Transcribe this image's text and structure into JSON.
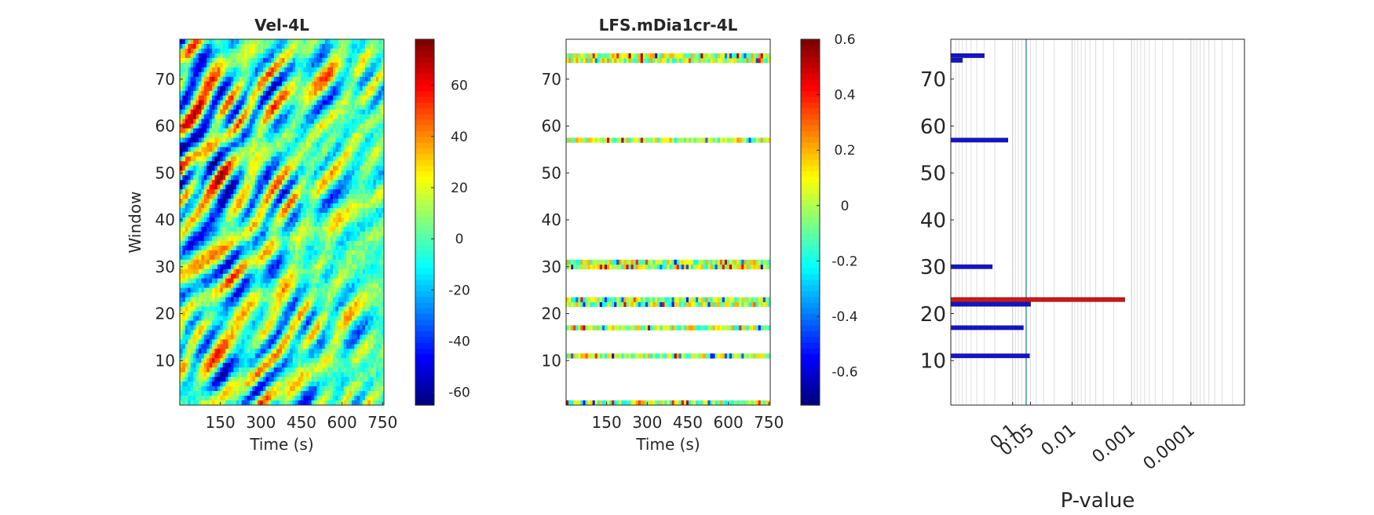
{
  "chart_data": [
    {
      "type": "heatmap",
      "title": "Vel-4L",
      "xlabel": "Time (s)",
      "ylabel": "Window",
      "xlim": [
        0,
        755
      ],
      "ylim": [
        0.5,
        78.5
      ],
      "xticks": [
        150,
        300,
        450,
        600,
        750
      ],
      "yticks": [
        10,
        20,
        30,
        40,
        50,
        60,
        70
      ],
      "colorbar": {
        "min": -65,
        "max": 78,
        "ticks": [
          -60,
          -40,
          -20,
          0,
          20,
          40,
          60
        ]
      },
      "colormap": "jet"
    },
    {
      "type": "heatmap",
      "title": "LFS.mDia1cr-4L",
      "xlabel": "Time (s)",
      "ylabel": "",
      "xlim": [
        0,
        755
      ],
      "ylim": [
        0.5,
        78.5
      ],
      "xticks": [
        150,
        300,
        450,
        600,
        750
      ],
      "yticks": [
        10,
        20,
        30,
        40,
        50,
        60,
        70
      ],
      "rows_with_data": [
        1,
        11,
        17,
        22,
        23,
        30,
        31,
        57,
        74,
        75
      ],
      "colorbar": {
        "min": -0.72,
        "max": 0.6,
        "ticks": [
          -0.6,
          -0.4,
          -0.2,
          0,
          0.2,
          0.4,
          0.6
        ]
      },
      "colormap": "jet"
    },
    {
      "type": "bar",
      "orientation": "horizontal",
      "title": "",
      "xlabel": "P-value",
      "ylabel": "",
      "x_scale": "log-reversed",
      "xticks": [
        "0.1",
        "0.05",
        "0.01",
        "0.001",
        "0.0001"
      ],
      "ylim": [
        0.5,
        78.5
      ],
      "yticks": [
        10,
        20,
        30,
        40,
        50,
        60,
        70
      ],
      "threshold": 0.05,
      "bars": [
        {
          "window": 11,
          "p": 0.052,
          "color": "blue"
        },
        {
          "window": 17,
          "p": 0.066,
          "color": "blue"
        },
        {
          "window": 22,
          "p": 0.05,
          "color": "blue"
        },
        {
          "window": 23,
          "p": 0.0013,
          "color": "red"
        },
        {
          "window": 30,
          "p": 0.22,
          "color": "blue"
        },
        {
          "window": 57,
          "p": 0.12,
          "color": "blue"
        },
        {
          "window": 74,
          "p": 0.7,
          "color": "blue"
        },
        {
          "window": 75,
          "p": 0.3,
          "color": "blue"
        }
      ]
    }
  ]
}
